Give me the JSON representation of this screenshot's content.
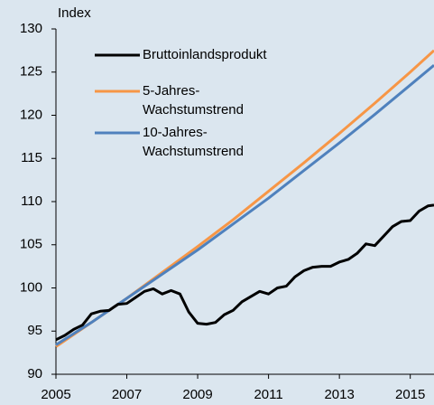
{
  "chart_data": {
    "type": "line",
    "ylabel": "Index",
    "xlim": [
      2005,
      2015.67
    ],
    "xticks": [
      2005,
      2007,
      2009,
      2011,
      2013,
      2015
    ],
    "ylim": [
      90,
      130
    ],
    "yticks": [
      90,
      95,
      100,
      105,
      110,
      115,
      120,
      125,
      130
    ],
    "series": [
      {
        "name": "Bruttoinlandsprodukt",
        "color": "#000000",
        "x": [
          2005,
          2005.25,
          2005.5,
          2005.75,
          2006,
          2006.25,
          2006.5,
          2006.75,
          2007,
          2007.25,
          2007.5,
          2007.75,
          2008,
          2008.25,
          2008.5,
          2008.75,
          2009,
          2009.25,
          2009.5,
          2009.75,
          2010,
          2010.25,
          2010.5,
          2010.75,
          2011,
          2011.25,
          2011.5,
          2011.75,
          2012,
          2012.25,
          2012.5,
          2012.75,
          2013,
          2013.25,
          2013.5,
          2013.75,
          2014,
          2014.25,
          2014.5,
          2014.75,
          2015,
          2015.25,
          2015.5,
          2015.67
        ],
        "values": [
          94.0,
          94.5,
          95.2,
          95.7,
          97.0,
          97.3,
          97.4,
          98.1,
          98.2,
          98.9,
          99.6,
          99.9,
          99.3,
          99.7,
          99.3,
          97.2,
          95.9,
          95.8,
          96.0,
          96.9,
          97.4,
          98.4,
          99.0,
          99.6,
          99.3,
          100.0,
          100.2,
          101.3,
          102.0,
          102.4,
          102.5,
          102.5,
          103.0,
          103.3,
          104.0,
          105.1,
          104.9,
          106.0,
          107.1,
          107.7,
          107.8,
          108.9,
          109.5,
          109.6
        ]
      },
      {
        "name": "5-Jahres-\nWachstumstrend",
        "color": "#f79646",
        "x": [
          2005,
          2006,
          2007,
          2008,
          2009,
          2010,
          2011,
          2012,
          2013,
          2014,
          2015,
          2015.67
        ],
        "values": [
          93.2,
          96.0,
          98.8,
          101.8,
          104.8,
          107.9,
          111.2,
          114.5,
          117.9,
          121.4,
          125.0,
          127.5
        ]
      },
      {
        "name": "10-Jahres-\nWachstumstrend",
        "color": "#4f81bd",
        "x": [
          2005,
          2006,
          2007,
          2008,
          2009,
          2010,
          2011,
          2012,
          2013,
          2014,
          2015,
          2015.67
        ],
        "values": [
          93.4,
          96.0,
          98.8,
          101.6,
          104.4,
          107.4,
          110.4,
          113.6,
          116.8,
          120.1,
          123.5,
          125.8
        ]
      }
    ]
  }
}
